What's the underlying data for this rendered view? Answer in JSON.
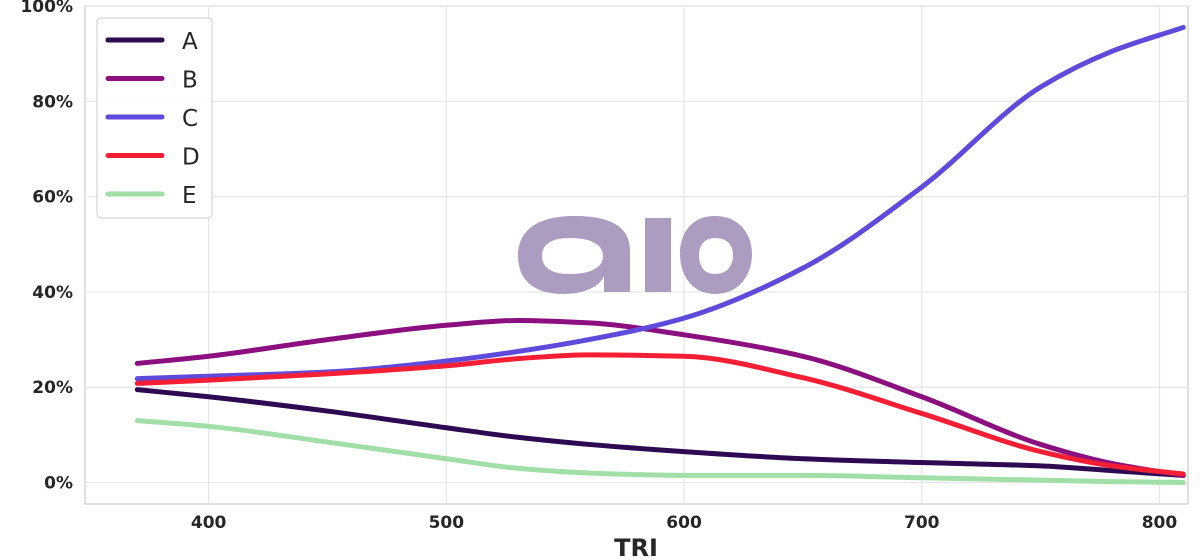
{
  "chart_data": {
    "type": "line",
    "title": "",
    "xlabel": "TRI",
    "ylabel": "",
    "xlim": [
      348,
      812
    ],
    "ylim": [
      -4.5,
      100
    ],
    "xticks": [
      400,
      500,
      600,
      700,
      800
    ],
    "yticks": [
      0,
      20,
      40,
      60,
      80,
      100
    ],
    "xtick_labels": [
      "400",
      "500",
      "600",
      "700",
      "800"
    ],
    "ytick_labels": [
      "0%",
      "20%",
      "40%",
      "60%",
      "80%",
      "100%"
    ],
    "grid": true,
    "legend_position": "top-left",
    "watermark": "aio",
    "x": [
      370,
      400,
      450,
      500,
      530,
      560,
      600,
      650,
      700,
      750,
      780,
      810
    ],
    "series": [
      {
        "name": "A",
        "color": "#2e0a52",
        "values": [
          19.5,
          18.0,
          15.0,
          11.5,
          9.5,
          8.0,
          6.5,
          5.0,
          4.2,
          3.5,
          2.5,
          1.5
        ]
      },
      {
        "name": "B",
        "color": "#8b0f7e",
        "values": [
          25.0,
          26.5,
          30.0,
          33.0,
          34.0,
          33.5,
          31.0,
          26.5,
          18.0,
          8.0,
          4.0,
          1.5
        ]
      },
      {
        "name": "C",
        "color": "#5f4bdb",
        "values": [
          21.8,
          22.3,
          23.2,
          25.5,
          27.5,
          30.0,
          34.5,
          45.0,
          62.0,
          83.0,
          90.5,
          95.5
        ]
      },
      {
        "name": "D",
        "color": "#f41f35",
        "values": [
          20.8,
          21.5,
          22.8,
          24.5,
          26.0,
          26.8,
          26.5,
          22.0,
          14.5,
          6.5,
          3.5,
          1.8
        ]
      },
      {
        "name": "E",
        "color": "#a2dea8",
        "values": [
          13.0,
          11.8,
          8.5,
          5.0,
          3.0,
          2.0,
          1.5,
          1.5,
          1.0,
          0.5,
          0.2,
          0.0
        ]
      }
    ]
  }
}
